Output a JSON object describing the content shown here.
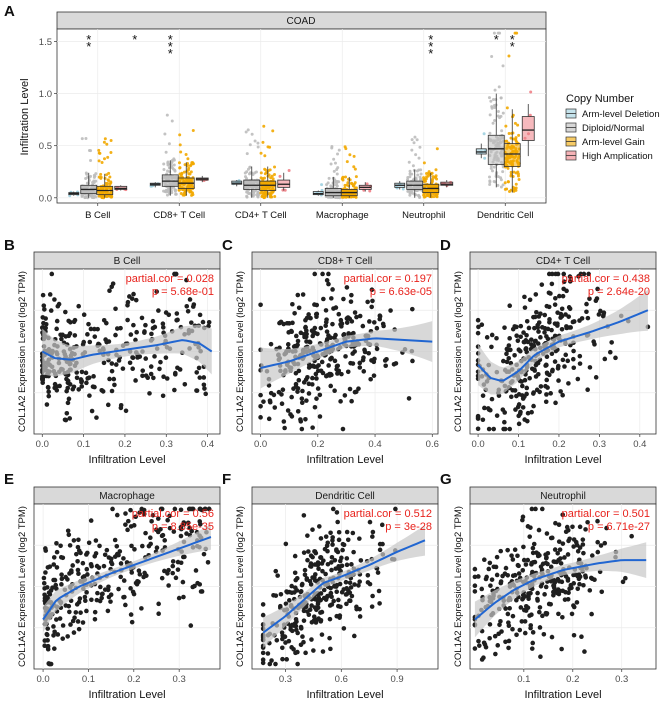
{
  "panel_letters": [
    "A",
    "B",
    "C",
    "D",
    "E",
    "F",
    "G"
  ],
  "colors": {
    "arm_deletion": "#9fd0e0",
    "diploid": "#bdbdbd",
    "arm_gain": "#f2a900",
    "high_amp": "#ef7f86",
    "point": "#1f1f1f",
    "fit_line": "#2166d1",
    "band": "#c8c8c8",
    "strip_bg": "#d9d9d9",
    "annotation": "#e8221c"
  },
  "chart_data": [
    {
      "id": "A",
      "type": "box",
      "title": "COAD",
      "xlabel": "",
      "ylabel": "Infiltration Level",
      "ylim": [
        -0.05,
        1.62
      ],
      "yticks": [
        "0.0",
        "0.5",
        "1.0",
        "1.5"
      ],
      "categories": [
        "B Cell",
        "CD8+ T Cell",
        "CD4+ T Cell",
        "Macrophage",
        "Neutrophil",
        "Dendritic Cell"
      ],
      "significance": [
        "**",
        "*",
        "***",
        "",
        "",
        "",
        "",
        "",
        "",
        "***",
        "*",
        "**"
      ],
      "legend": {
        "title": "Copy Number",
        "position": "right",
        "items": [
          "Arm-level Deletion",
          "Diploid/Normal",
          "Arm-level Gain",
          "High Amplication"
        ]
      },
      "series": [
        {
          "name": "Arm-level Deletion",
          "boxes": [
            [
              0.02,
              0.03,
              0.04,
              0.05,
              0.06
            ],
            [
              0.1,
              0.12,
              0.13,
              0.14,
              0.15
            ],
            [
              0.11,
              0.13,
              0.14,
              0.16,
              0.17
            ],
            [
              0.02,
              0.03,
              0.04,
              0.06,
              0.07
            ],
            [
              0.08,
              0.1,
              0.12,
              0.14,
              0.16
            ],
            [
              0.38,
              0.42,
              0.44,
              0.47,
              0.52
            ]
          ]
        },
        {
          "name": "Diploid/Normal",
          "boxes": [
            [
              0.0,
              0.04,
              0.08,
              0.12,
              0.24
            ],
            [
              0.02,
              0.11,
              0.16,
              0.22,
              0.36
            ],
            [
              0.0,
              0.08,
              0.12,
              0.17,
              0.3
            ],
            [
              0.0,
              0.02,
              0.05,
              0.09,
              0.2
            ],
            [
              0.0,
              0.08,
              0.12,
              0.16,
              0.27
            ],
            [
              0.1,
              0.32,
              0.47,
              0.6,
              1.0
            ]
          ]
        },
        {
          "name": "Arm-level Gain",
          "boxes": [
            [
              0.0,
              0.03,
              0.07,
              0.11,
              0.23
            ],
            [
              0.02,
              0.09,
              0.14,
              0.19,
              0.34
            ],
            [
              0.0,
              0.07,
              0.12,
              0.16,
              0.3
            ],
            [
              0.0,
              0.02,
              0.05,
              0.08,
              0.2
            ],
            [
              0.0,
              0.05,
              0.09,
              0.13,
              0.24
            ],
            [
              0.05,
              0.3,
              0.42,
              0.52,
              0.85
            ]
          ]
        },
        {
          "name": "High Amplication",
          "boxes": [
            [
              0.07,
              0.08,
              0.09,
              0.11,
              0.12
            ],
            [
              0.15,
              0.17,
              0.18,
              0.19,
              0.21
            ],
            [
              0.07,
              0.1,
              0.13,
              0.17,
              0.24
            ],
            [
              0.06,
              0.08,
              0.1,
              0.12,
              0.15
            ],
            [
              0.1,
              0.12,
              0.13,
              0.15,
              0.17
            ],
            [
              0.4,
              0.55,
              0.65,
              0.78,
              0.9
            ]
          ]
        }
      ]
    },
    {
      "id": "B",
      "type": "scatter",
      "title": "B Cell",
      "xlabel": "Infiltration Level",
      "ylabel": "COL1A2 Expression Level (log2 TPM)",
      "xlim": [
        -0.02,
        0.43
      ],
      "xticks": [
        0.0,
        0.1,
        0.2,
        0.3,
        0.4
      ],
      "annotations": [
        "partial.cor = 0.028",
        "p = 5.68e-01"
      ],
      "fit": [
        [
          0.0,
          0.5
        ],
        [
          0.03,
          0.46
        ],
        [
          0.07,
          0.45
        ],
        [
          0.12,
          0.48
        ],
        [
          0.2,
          0.51
        ],
        [
          0.28,
          0.54
        ],
        [
          0.34,
          0.57
        ],
        [
          0.38,
          0.55
        ],
        [
          0.41,
          0.5
        ]
      ],
      "band_width": 0.09
    },
    {
      "id": "C",
      "type": "scatter",
      "title": "CD8+ T Cell",
      "xlabel": "Infiltration Level",
      "ylabel": "COL1A2 Expression Level (log2 TPM)",
      "xlim": [
        -0.03,
        0.62
      ],
      "xticks": [
        0.0,
        0.2,
        0.4,
        0.6
      ],
      "annotations": [
        "partial.cor = 0.197",
        "p = 6.63e-05"
      ],
      "fit": [
        [
          0.0,
          0.4
        ],
        [
          0.1,
          0.44
        ],
        [
          0.2,
          0.5
        ],
        [
          0.3,
          0.56
        ],
        [
          0.4,
          0.58
        ],
        [
          0.5,
          0.57
        ],
        [
          0.6,
          0.56
        ]
      ],
      "band_width": 0.08
    },
    {
      "id": "D",
      "type": "scatter",
      "title": "CD4+ T Cell",
      "xlabel": "Infiltration Level",
      "ylabel": "COL1A2 Expression Level (log2 TPM)",
      "xlim": [
        -0.02,
        0.44
      ],
      "xticks": [
        0.0,
        0.1,
        0.2,
        0.3,
        0.4
      ],
      "annotations": [
        "partial.cor = 0.438",
        "p = 2.64e-20"
      ],
      "fit": [
        [
          0.0,
          0.42
        ],
        [
          0.03,
          0.34
        ],
        [
          0.06,
          0.32
        ],
        [
          0.1,
          0.38
        ],
        [
          0.14,
          0.48
        ],
        [
          0.2,
          0.56
        ],
        [
          0.28,
          0.62
        ],
        [
          0.35,
          0.68
        ],
        [
          0.42,
          0.75
        ]
      ],
      "band_width": 0.08
    },
    {
      "id": "E",
      "type": "scatter",
      "title": "Macrophage",
      "xlabel": "Infiltration Level",
      "ylabel": "COL1A2 Expression Level (log2 TPM)",
      "xlim": [
        -0.02,
        0.39
      ],
      "xticks": [
        0.0,
        0.1,
        0.2,
        0.3
      ],
      "annotations": [
        "partial.cor = 0.56",
        "p = 8.85e-35"
      ],
      "fit": [
        [
          0.0,
          0.3
        ],
        [
          0.03,
          0.42
        ],
        [
          0.08,
          0.5
        ],
        [
          0.15,
          0.58
        ],
        [
          0.25,
          0.68
        ],
        [
          0.33,
          0.76
        ],
        [
          0.37,
          0.8
        ]
      ],
      "band_width": 0.05
    },
    {
      "id": "F",
      "type": "scatter",
      "title": "Dendritic Cell",
      "xlabel": "Infiltration Level",
      "ylabel": "COL1A2 Expression Level (log2 TPM)",
      "xlim": [
        0.12,
        1.12
      ],
      "xticks": [
        0.3,
        0.6,
        0.9
      ],
      "annotations": [
        "partial.cor = 0.512",
        "p = 3e-28"
      ],
      "fit": [
        [
          0.18,
          0.22
        ],
        [
          0.3,
          0.32
        ],
        [
          0.42,
          0.44
        ],
        [
          0.5,
          0.52
        ],
        [
          0.6,
          0.56
        ],
        [
          0.75,
          0.63
        ],
        [
          0.9,
          0.71
        ],
        [
          1.05,
          0.78
        ]
      ],
      "band_width": 0.06
    },
    {
      "id": "G",
      "type": "scatter",
      "title": "Neutrophil",
      "xlabel": "Infiltration Level",
      "ylabel": "COL1A2 Expression Level (log2 TPM)",
      "xlim": [
        -0.01,
        0.37
      ],
      "xticks": [
        0.1,
        0.2,
        0.3
      ],
      "annotations": [
        "partial.cor = 0.501",
        "p = 6.71e-27"
      ],
      "fit": [
        [
          0.0,
          0.3
        ],
        [
          0.04,
          0.4
        ],
        [
          0.08,
          0.48
        ],
        [
          0.12,
          0.54
        ],
        [
          0.18,
          0.6
        ],
        [
          0.25,
          0.64
        ],
        [
          0.3,
          0.66
        ],
        [
          0.35,
          0.66
        ]
      ],
      "band_width": 0.07
    }
  ]
}
